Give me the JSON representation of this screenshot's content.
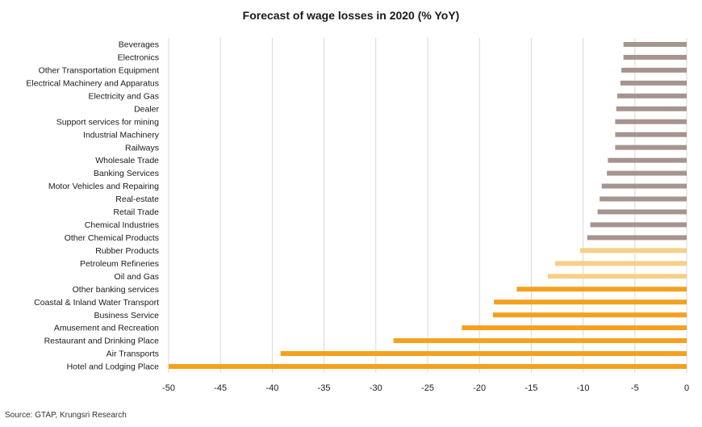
{
  "chart_data": {
    "type": "bar",
    "orientation": "horizontal",
    "title": "Forecast of wage losses in 2020 (% YoY)",
    "xlabel": "",
    "ylabel": "",
    "xlim": [
      -50,
      0
    ],
    "x_ticks": [
      "-50",
      "-45",
      "-40",
      "-35",
      "-30",
      "-25",
      "-20",
      "-15",
      "-10",
      "-5",
      "0"
    ],
    "grid": "vertical",
    "legend": "none",
    "categories": [
      "Beverages",
      "Electronics",
      "Other Transportation Equipment",
      "Electrical Machinery and Apparatus",
      "Electricity and Gas",
      "Dealer",
      "Support services for mining",
      "Industrial Machinery",
      "Railways",
      "Wholesale Trade",
      "Banking Services",
      "Motor Vehicles and Repairing",
      "Real-estate",
      "Retail Trade",
      "Chemical Industries",
      "Other Chemical Products",
      "Rubber Products",
      "Petroleum Refineries",
      "Oil and Gas",
      "Other banking services",
      "Coastal & Inland Water Transport",
      "Business Service",
      "Amusement and Recreation",
      "Restaurant and Drinking Place",
      "Air Transports",
      "Hotel and Lodging Place"
    ],
    "values": [
      -6.1,
      -6.1,
      -6.3,
      -6.4,
      -6.7,
      -6.8,
      -6.9,
      -6.9,
      -6.9,
      -7.6,
      -7.7,
      -8.2,
      -8.4,
      -8.6,
      -9.3,
      -9.6,
      -10.3,
      -12.7,
      -13.4,
      -16.4,
      -18.6,
      -18.7,
      -21.7,
      -28.3,
      -39.2,
      -50.0
    ],
    "bar_color_groups": [
      "gray",
      "gray",
      "gray",
      "gray",
      "gray",
      "gray",
      "gray",
      "gray",
      "gray",
      "gray",
      "gray",
      "gray",
      "gray",
      "gray",
      "gray",
      "gray",
      "light",
      "light",
      "light",
      "orange",
      "orange",
      "orange",
      "orange",
      "orange",
      "orange",
      "orange"
    ]
  },
  "colors": {
    "gray": "#A6948F",
    "light": "#F7CF88",
    "orange": "#F3A11F",
    "grid": "#d9d9d9"
  },
  "source": "Source: GTAP, Krungsri Research"
}
